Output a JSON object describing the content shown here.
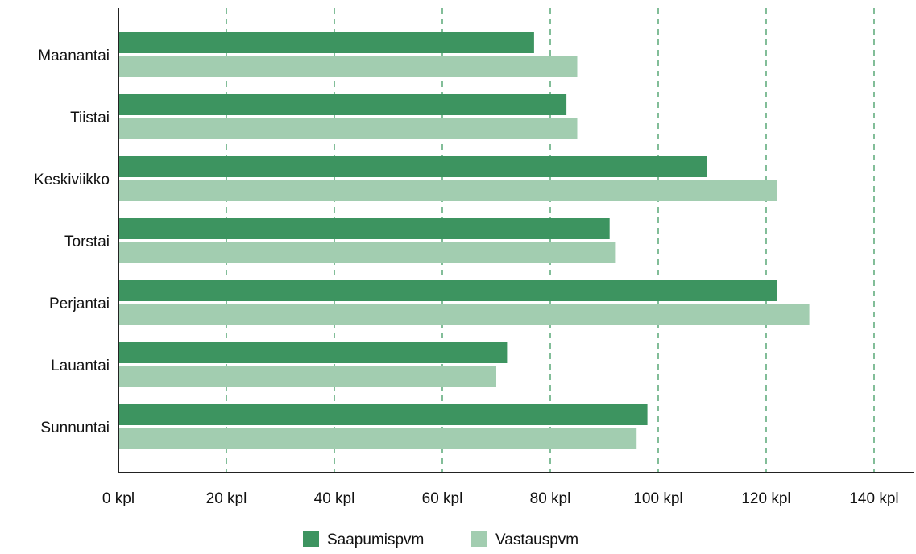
{
  "chart_data": {
    "type": "bar",
    "orientation": "horizontal",
    "categories": [
      "Maanantai",
      "Tiistai",
      "Keskiviikko",
      "Torstai",
      "Perjantai",
      "Lauantai",
      "Sunnuntai"
    ],
    "series": [
      {
        "name": "Saapumispvm",
        "color": "#3d9460",
        "values": [
          77,
          83,
          109,
          91,
          122,
          72,
          98
        ]
      },
      {
        "name": "Vastauspvm",
        "color": "#a2cdb0",
        "values": [
          85,
          85,
          122,
          92,
          128,
          70,
          96
        ]
      }
    ],
    "x_ticks": [
      0,
      20,
      40,
      60,
      80,
      100,
      120,
      140
    ],
    "x_tick_labels": [
      "0 kpl",
      "20 kpl",
      "40 kpl",
      "60 kpl",
      "80 kpl",
      "100 kpl",
      "120 kpl",
      "140 kpl"
    ],
    "xlim": [
      0,
      140
    ],
    "grid": "vertical dashed",
    "legend_position": "bottom"
  }
}
